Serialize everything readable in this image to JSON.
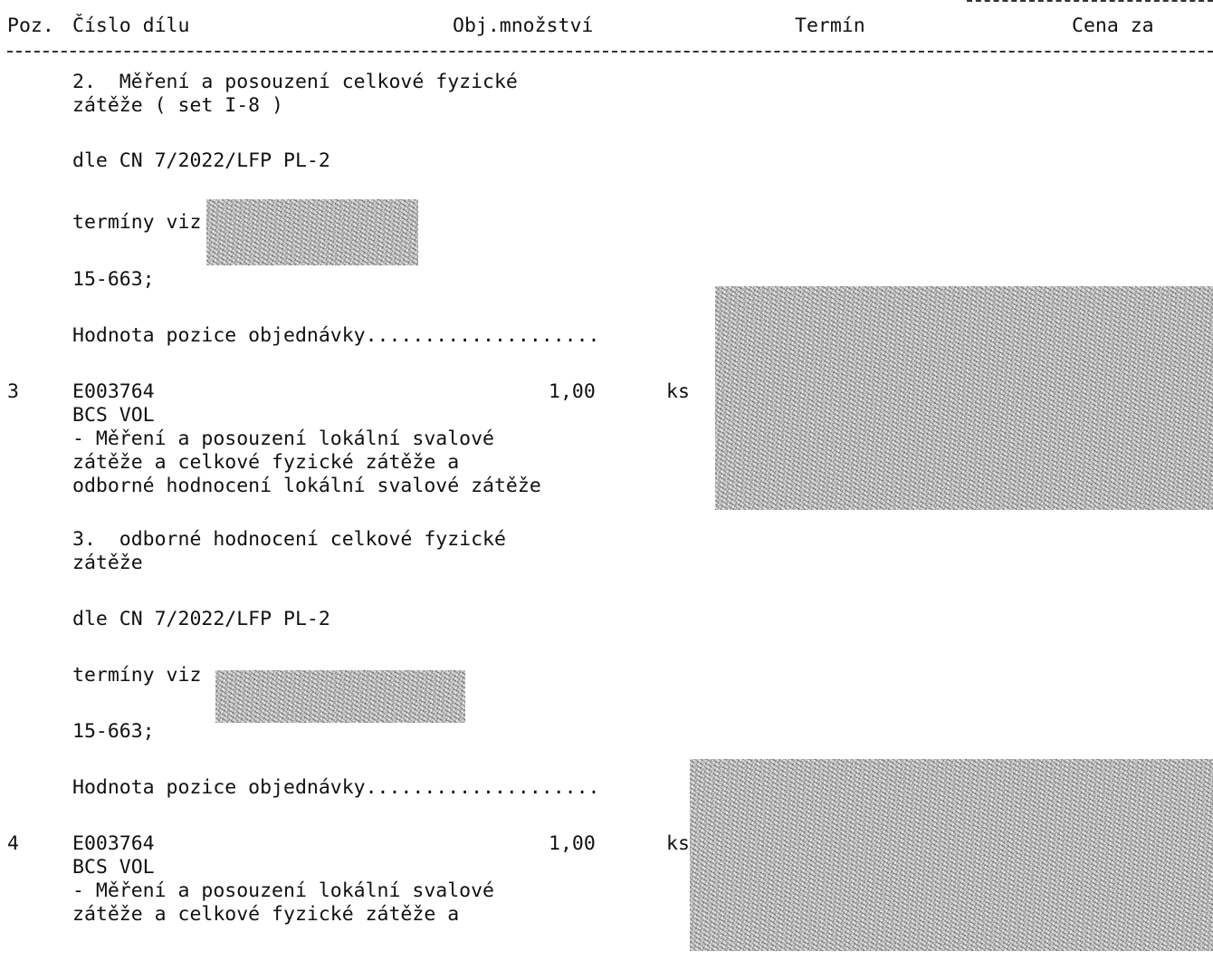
{
  "header": {
    "col_pos": "Poz.",
    "col_part": "Číslo dílu",
    "col_qty": "Obj.množství",
    "col_term": "Termín",
    "col_price": "Cena za"
  },
  "block_prev": {
    "desc_line1": "2.  Měření a posouzení celkové fyzické",
    "desc_line2": "zátěže ( set I-8 )",
    "ref": "dle CN 7/2022/LFP PL-2",
    "terms_prefix": "termíny viz",
    "code": "15-663;",
    "value_label": "Hodnota pozice objednávky...................."
  },
  "item3": {
    "pos": "3",
    "part": "E003764",
    "qty": "1,00",
    "unit": "ks",
    "name": "BCS VOL",
    "line1": "- Měření a posouzení lokální svalové",
    "line2": "zátěže a celkové fyzické zátěže a",
    "line3": "odborné hodnocení lokální svalové zátěže",
    "sub_line1": "3.  odborné hodnocení celkové fyzické",
    "sub_line2": "zátěže",
    "ref": "dle CN 7/2022/LFP PL-2",
    "terms_prefix": "termíny viz",
    "code": "15-663;",
    "value_label": "Hodnota pozice objednávky...................."
  },
  "item4": {
    "pos": "4",
    "part": "E003764",
    "qty": "1,00",
    "unit": "ks",
    "name": "BCS VOL",
    "line1": "- Měření a posouzení lokální svalové",
    "line2": "zátěže a celkové fyzické zátěže a"
  }
}
